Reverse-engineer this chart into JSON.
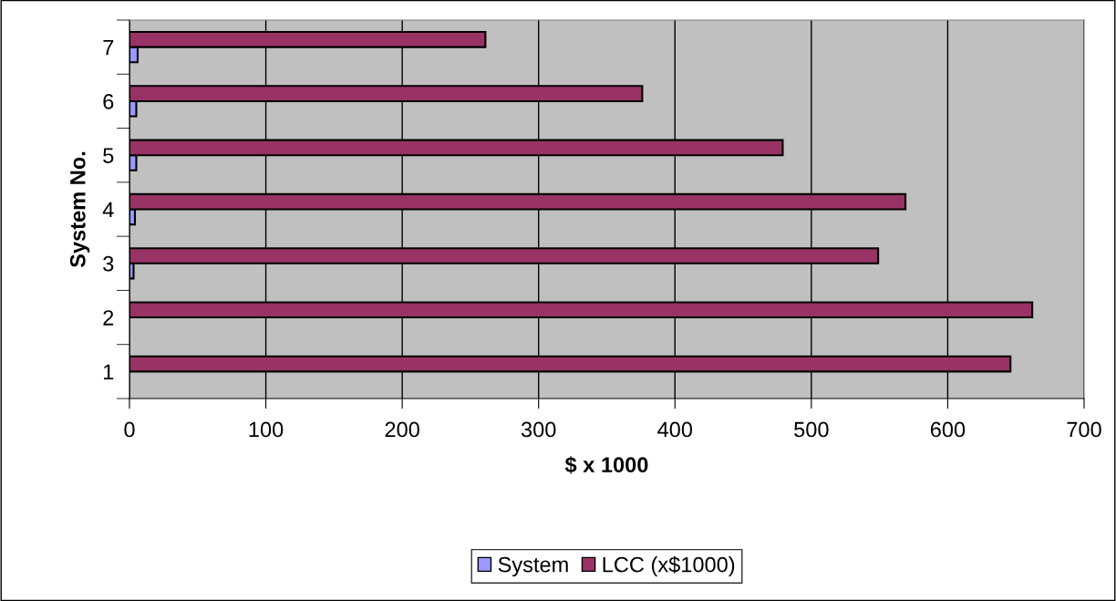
{
  "chart_data": {
    "type": "bar",
    "orientation": "horizontal",
    "categories": [
      "7",
      "6",
      "5",
      "4",
      "3",
      "2",
      "1"
    ],
    "series": [
      {
        "name": "System",
        "color": "#9999ff",
        "values": [
          6,
          5,
          5,
          4,
          3,
          null,
          null
        ]
      },
      {
        "name": "LCC (x$1000)",
        "color": "#993366",
        "values": [
          261,
          376,
          479,
          569,
          549,
          662,
          646
        ]
      }
    ],
    "xlabel": "$ x 1000",
    "ylabel": "System No.",
    "xlim": [
      0,
      700
    ],
    "xticks": [
      0,
      100,
      200,
      300,
      400,
      500,
      600,
      700
    ],
    "grid": "x",
    "legend": "bottom"
  }
}
